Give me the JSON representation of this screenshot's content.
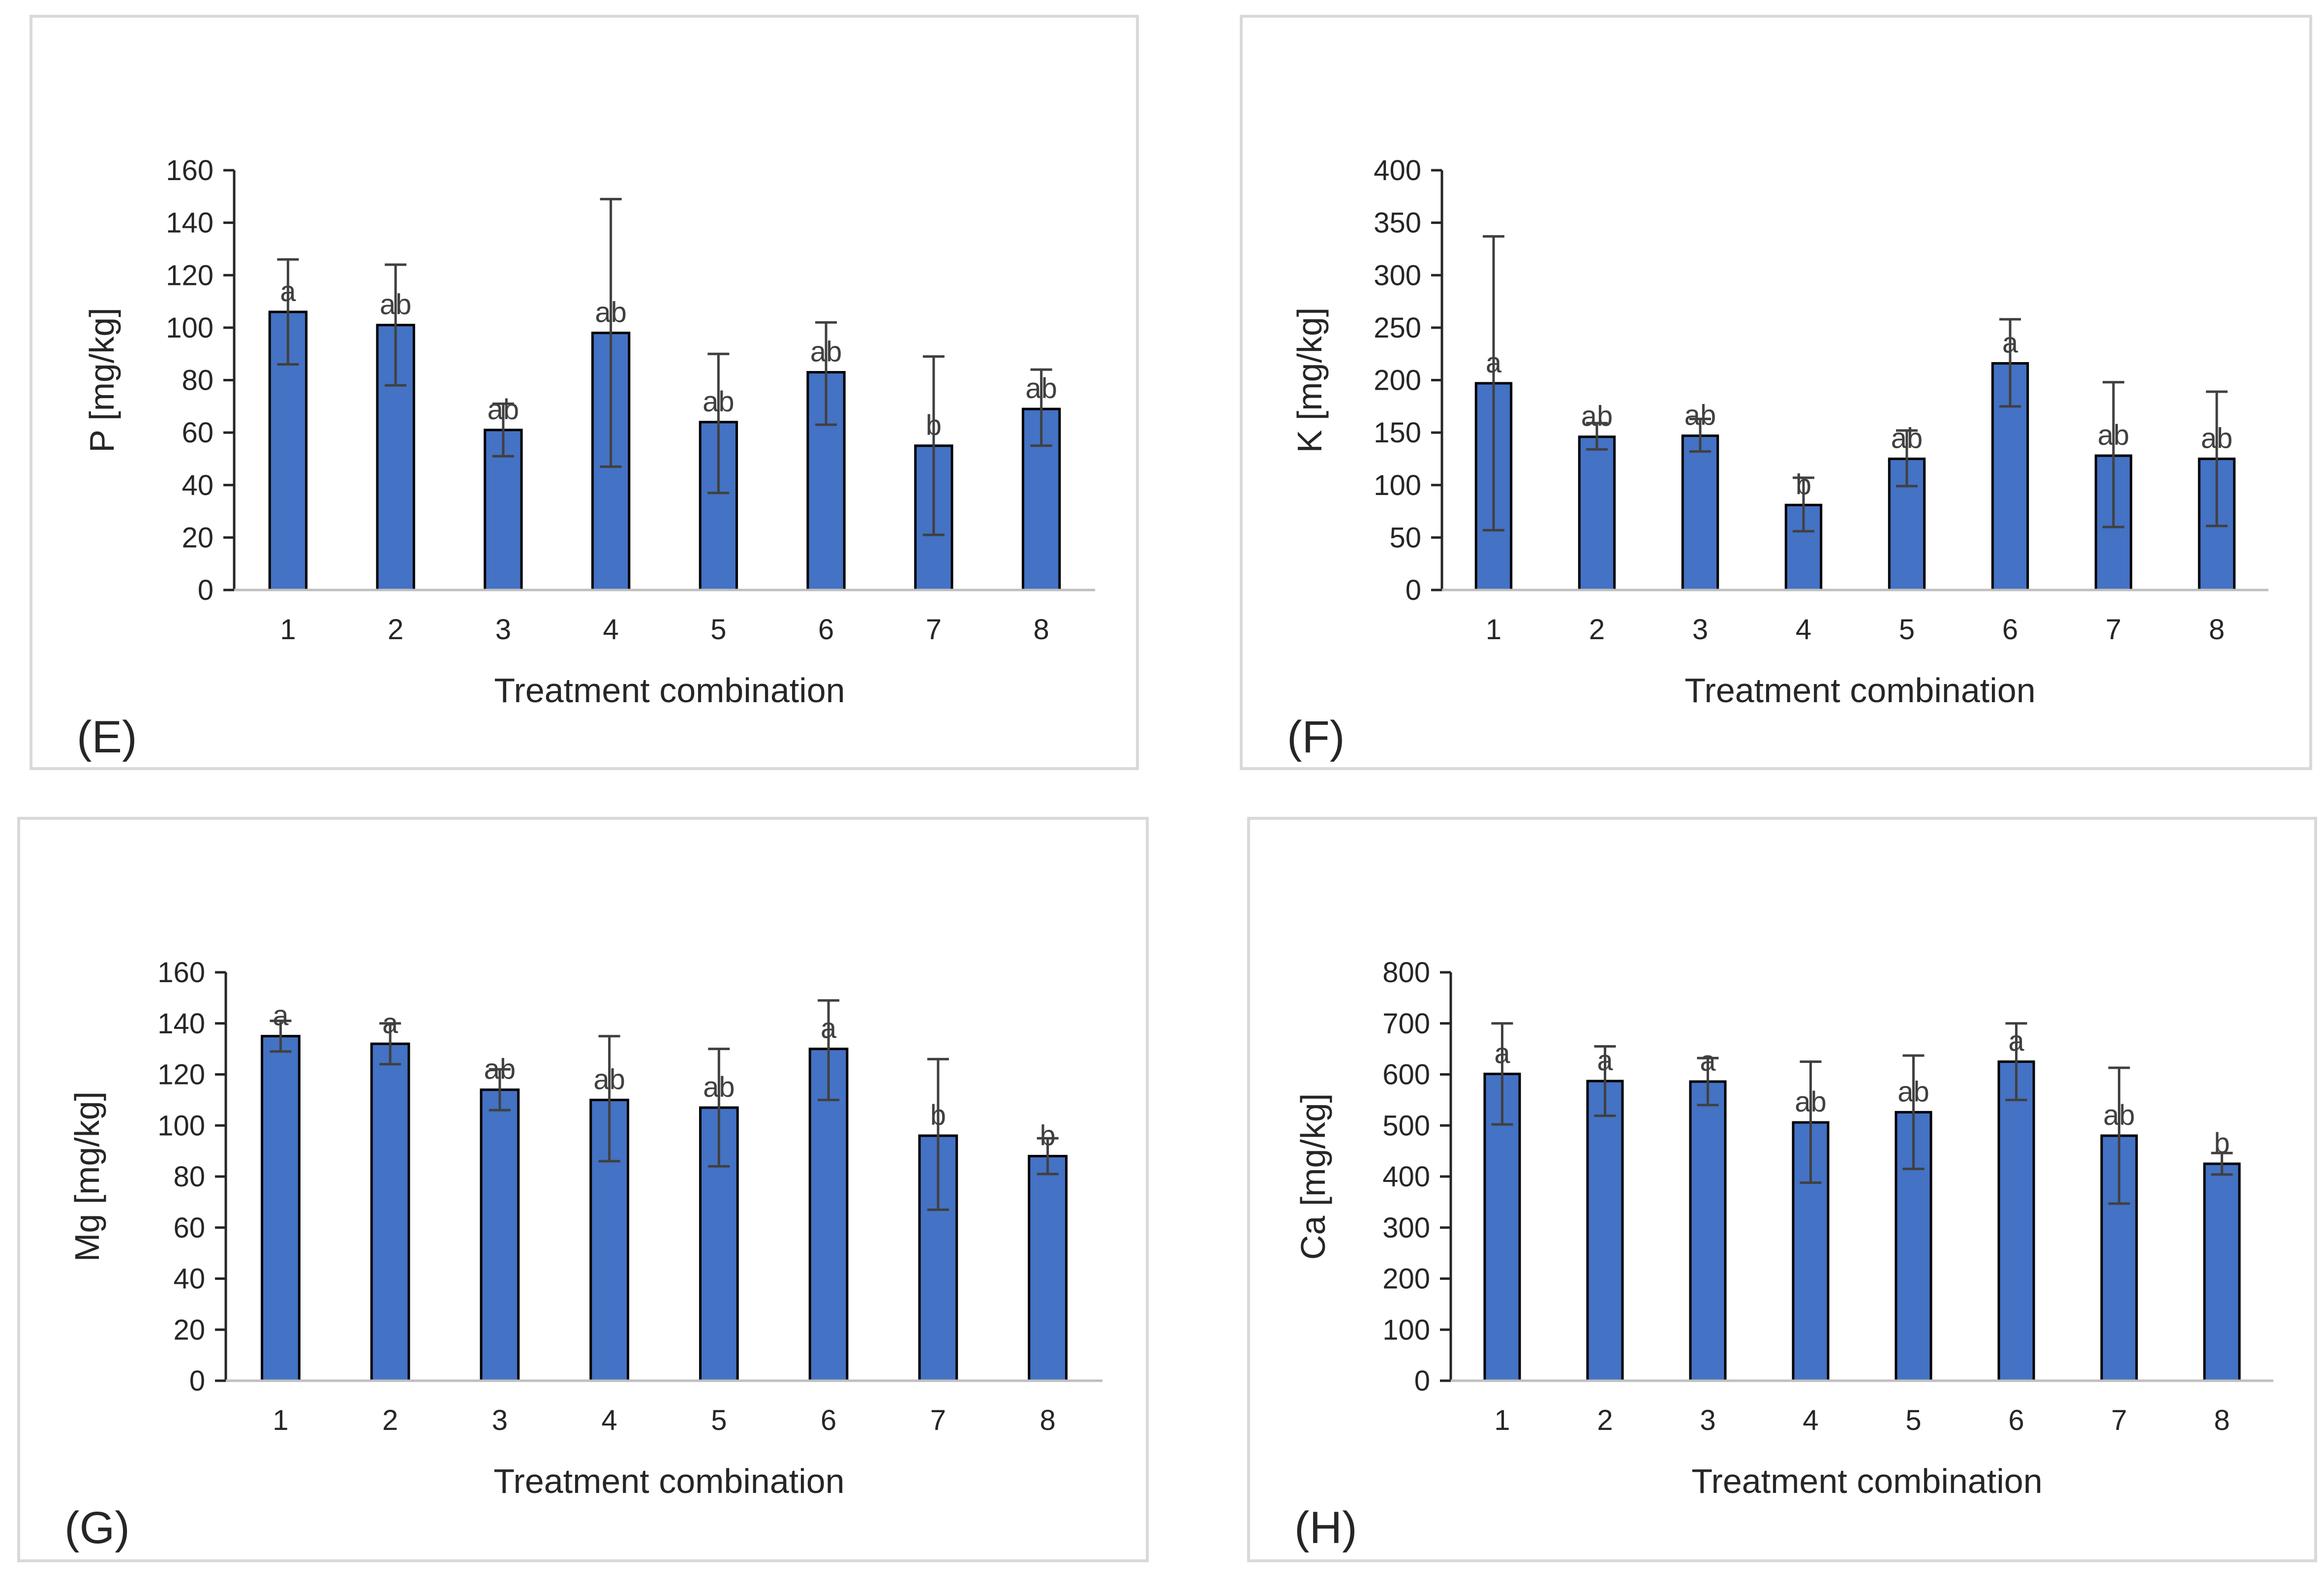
{
  "chart_data": [
    {
      "type": "bar",
      "panel_label": "(E)",
      "categories": [
        "1",
        "2",
        "3",
        "4",
        "5",
        "6",
        "7",
        "8"
      ],
      "values": [
        106,
        101,
        61,
        98,
        64,
        83,
        55,
        69
      ],
      "error_low": [
        86,
        78,
        51,
        47,
        37,
        63,
        21,
        55
      ],
      "error_high": [
        126,
        124,
        71,
        149,
        90,
        102,
        89,
        84
      ],
      "significance": [
        "a",
        "ab",
        "ab",
        "ab",
        "ab",
        "ab",
        "b",
        "ab"
      ],
      "xlabel": "Treatment combination",
      "ylabel": "P [mg/kg]",
      "ylim": [
        0,
        160
      ],
      "yticks": [
        0,
        20,
        40,
        60,
        80,
        100,
        120,
        140,
        160
      ],
      "bar_color": "#4472c4",
      "grid": false
    },
    {
      "type": "bar",
      "panel_label": "(F)",
      "categories": [
        "1",
        "2",
        "3",
        "4",
        "5",
        "6",
        "7",
        "8"
      ],
      "values": [
        197,
        146,
        147,
        81,
        125,
        216,
        128,
        125
      ],
      "error_low": [
        57,
        134,
        132,
        56,
        99,
        175,
        60,
        61
      ],
      "error_high": [
        337,
        159,
        163,
        107,
        152,
        258,
        198,
        189
      ],
      "significance": [
        "a",
        "ab",
        "ab",
        "b",
        "ab",
        "a",
        "ab",
        "ab"
      ],
      "xlabel": "Treatment combination",
      "ylabel": "K [mg/kg]",
      "ylim": [
        0,
        400
      ],
      "yticks": [
        0,
        50,
        100,
        150,
        200,
        250,
        300,
        350,
        400
      ],
      "bar_color": "#4472c4",
      "grid": false
    },
    {
      "type": "bar",
      "panel_label": "(G)",
      "categories": [
        "1",
        "2",
        "3",
        "4",
        "5",
        "6",
        "7",
        "8"
      ],
      "values": [
        135,
        132,
        114,
        110,
        107,
        130,
        96,
        88
      ],
      "error_low": [
        129,
        124,
        106,
        86,
        84,
        110,
        67,
        81
      ],
      "error_high": [
        141,
        140,
        122,
        135,
        130,
        149,
        126,
        95
      ],
      "significance": [
        "a",
        "a",
        "ab",
        "ab",
        "ab",
        "a",
        "b",
        "b"
      ],
      "xlabel": "Treatment combination",
      "ylabel": "Mg [mg/kg]",
      "ylim": [
        0,
        160
      ],
      "yticks": [
        0,
        20,
        40,
        60,
        80,
        100,
        120,
        140,
        160
      ],
      "bar_color": "#4472c4",
      "grid": false
    },
    {
      "type": "bar",
      "panel_label": "(H)",
      "categories": [
        "1",
        "2",
        "3",
        "4",
        "5",
        "6",
        "7",
        "8"
      ],
      "values": [
        601,
        587,
        586,
        506,
        526,
        625,
        480,
        425
      ],
      "error_low": [
        502,
        519,
        540,
        388,
        415,
        550,
        347,
        404
      ],
      "error_high": [
        700,
        655,
        632,
        625,
        637,
        700,
        613,
        446
      ],
      "significance": [
        "a",
        "a",
        "a",
        "ab",
        "ab",
        "a",
        "ab",
        "b"
      ],
      "xlabel": "Treatment combination",
      "ylabel": "Ca [mg/kg]",
      "ylim": [
        0,
        800
      ],
      "yticks": [
        0,
        100,
        200,
        300,
        400,
        500,
        600,
        700,
        800
      ],
      "bar_color": "#4472c4",
      "grid": false
    }
  ],
  "style": {
    "bar_color": "#4472c4",
    "bar_outline": "#000000",
    "axis_color": "#262626",
    "error_bar_color": "#404040",
    "panel_border_color": "#d9d9d9"
  }
}
